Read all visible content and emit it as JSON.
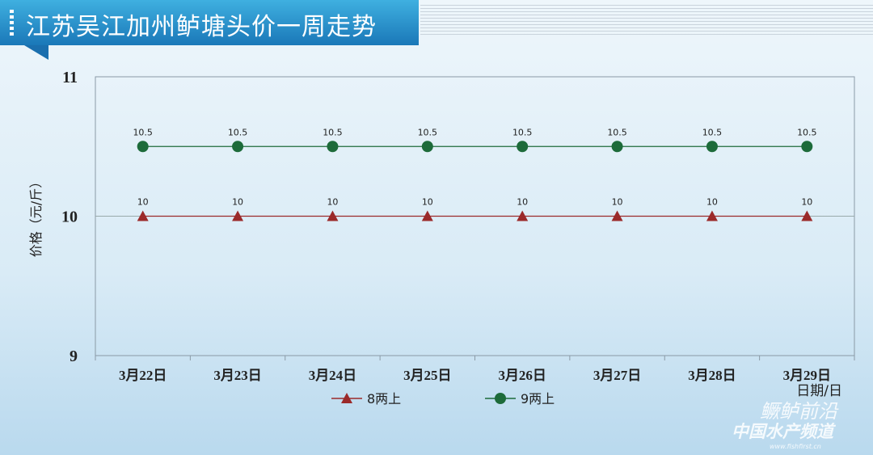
{
  "header": {
    "title": "江苏吴江加州鲈塘头价一周走势"
  },
  "watermark": {
    "line1": "鳜鲈前沿",
    "line2": "中国水产频道",
    "url": "www.fishfirst.cn"
  },
  "chart_data": {
    "type": "line",
    "title": "江苏吴江加州鲈塘头价一周走势",
    "xlabel": "日期/日",
    "ylabel": "价格（元/斤）",
    "ylim": [
      9,
      11
    ],
    "yticks": [
      "9",
      "10",
      "11"
    ],
    "categories": [
      "3月22日",
      "3月23日",
      "3月24日",
      "3月25日",
      "3月26日",
      "3月27日",
      "3月28日",
      "3月29日"
    ],
    "series": [
      {
        "name": "8两上",
        "values": [
          10,
          10,
          10,
          10,
          10,
          10,
          10,
          10
        ],
        "color": "#9b2a2a",
        "marker": "triangle"
      },
      {
        "name": "9两上",
        "values": [
          10.5,
          10.5,
          10.5,
          10.5,
          10.5,
          10.5,
          10.5,
          10.5
        ],
        "color": "#1d6b3a",
        "marker": "circle"
      }
    ],
    "legend": "bottom",
    "grid": false
  }
}
